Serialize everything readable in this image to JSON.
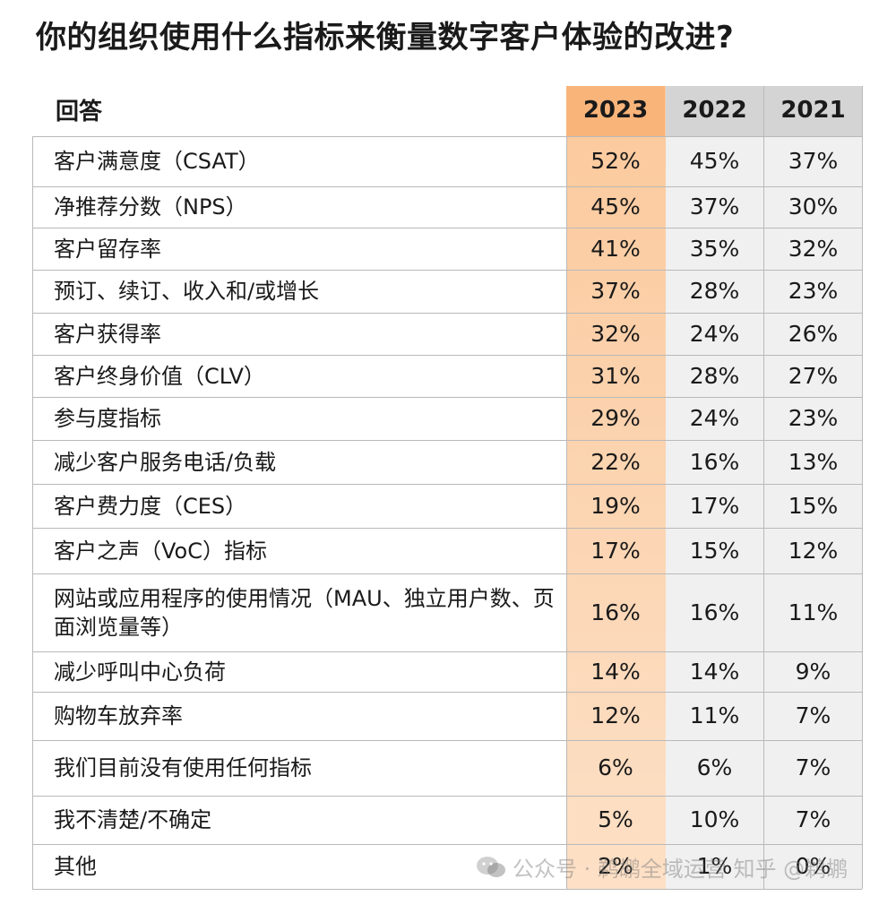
{
  "title": "你的组织使用什么指标来衡量数字客户体验的改进?",
  "chart_data": {
    "type": "table",
    "header": {
      "answer": "回答",
      "years": [
        "2023",
        "2022",
        "2021"
      ]
    },
    "rows": [
      {
        "label": "客户满意度（CSAT）",
        "values": [
          "52%",
          "45%",
          "37%"
        ]
      },
      {
        "label": "净推荐分数（NPS）",
        "values": [
          "45%",
          "37%",
          "30%"
        ]
      },
      {
        "label": "客户留存率",
        "values": [
          "41%",
          "35%",
          "32%"
        ]
      },
      {
        "label": "预订、续订、收入和/或增长",
        "values": [
          "37%",
          "28%",
          "23%"
        ]
      },
      {
        "label": "客户获得率",
        "values": [
          "32%",
          "24%",
          "26%"
        ]
      },
      {
        "label": "客户终身价值（CLV）",
        "values": [
          "31%",
          "28%",
          "27%"
        ]
      },
      {
        "label": "参与度指标",
        "values": [
          "29%",
          "24%",
          "23%"
        ]
      },
      {
        "label": "减少客户服务电话/负载",
        "values": [
          "22%",
          "16%",
          "13%"
        ]
      },
      {
        "label": "客户费力度（CES）",
        "values": [
          "19%",
          "17%",
          "15%"
        ]
      },
      {
        "label": "客户之声（VoC）指标",
        "values": [
          "17%",
          "15%",
          "12%"
        ]
      },
      {
        "label": "网站或应用程序的使用情况（MAU、独立用户数、页面浏览量等）",
        "values": [
          "16%",
          "16%",
          "11%"
        ]
      },
      {
        "label": "减少呼叫中心负荷",
        "values": [
          "14%",
          "14%",
          "9%"
        ]
      },
      {
        "label": "购物车放弃率",
        "values": [
          "12%",
          "11%",
          "7%"
        ]
      },
      {
        "label": "我们目前没有使用任何指标",
        "values": [
          "6%",
          "6%",
          "7%"
        ]
      },
      {
        "label": "我不清楚/不确定",
        "values": [
          "5%",
          "10%",
          "7%"
        ]
      },
      {
        "label": "其他",
        "values": [
          "2%",
          "1%",
          "0%"
        ]
      }
    ],
    "highlight_year": "2023",
    "colors": {
      "highlight_header": "#f9b47a",
      "highlight_column": "#fcd3ae",
      "other_header": "#d4d4d4",
      "other_column": "#f0f0f0",
      "grid": "#b9b9b9"
    }
  },
  "watermark": "公众号 · 鹈鹕全域运营  知乎 @鹈鹕"
}
